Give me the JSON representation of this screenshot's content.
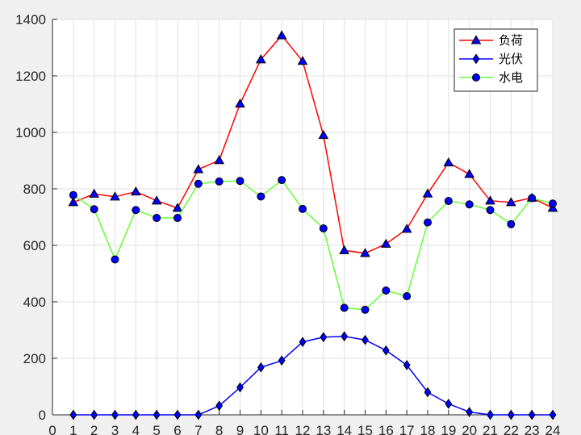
{
  "chart_data": {
    "type": "line",
    "title": "",
    "xlabel": "",
    "ylabel": "",
    "x": [
      1,
      2,
      3,
      4,
      5,
      6,
      7,
      8,
      9,
      10,
      11,
      12,
      13,
      14,
      15,
      16,
      17,
      18,
      19,
      20,
      21,
      22,
      23,
      24
    ],
    "xlim": [
      0,
      24
    ],
    "ylim": [
      0,
      1400
    ],
    "xticks": [
      "0",
      "1",
      "2",
      "3",
      "4",
      "5",
      "6",
      "7",
      "8",
      "9",
      "10",
      "11",
      "12",
      "13",
      "14",
      "15",
      "16",
      "17",
      "18",
      "19",
      "20",
      "21",
      "22",
      "23",
      "24"
    ],
    "yticks": [
      "0",
      "200",
      "400",
      "600",
      "800",
      "1000",
      "1200",
      "1400"
    ],
    "grid": true,
    "legend_position": "top-right",
    "series": [
      {
        "name": "负荷",
        "color": "#ff0000",
        "marker": "triangle",
        "values": [
          752,
          782,
          772,
          790,
          758,
          732,
          869,
          901,
          1101,
          1258,
          1343,
          1252,
          990,
          582,
          572,
          605,
          658,
          783,
          893,
          852,
          758,
          752,
          768,
          732
        ]
      },
      {
        "name": "光伏",
        "color": "#0000ff",
        "marker": "diamond",
        "values": [
          0,
          0,
          0,
          0,
          0,
          0,
          0,
          32,
          97,
          168,
          192,
          258,
          275,
          278,
          265,
          228,
          176,
          80,
          39,
          10,
          0,
          0,
          0,
          0
        ]
      },
      {
        "name": "水电",
        "color": "#66ff33",
        "marker": "circle",
        "values": [
          778,
          728,
          550,
          725,
          697,
          697,
          818,
          826,
          828,
          773,
          831,
          729,
          660,
          379,
          372,
          440,
          420,
          681,
          757,
          745,
          725,
          675,
          767,
          748
        ]
      }
    ]
  }
}
